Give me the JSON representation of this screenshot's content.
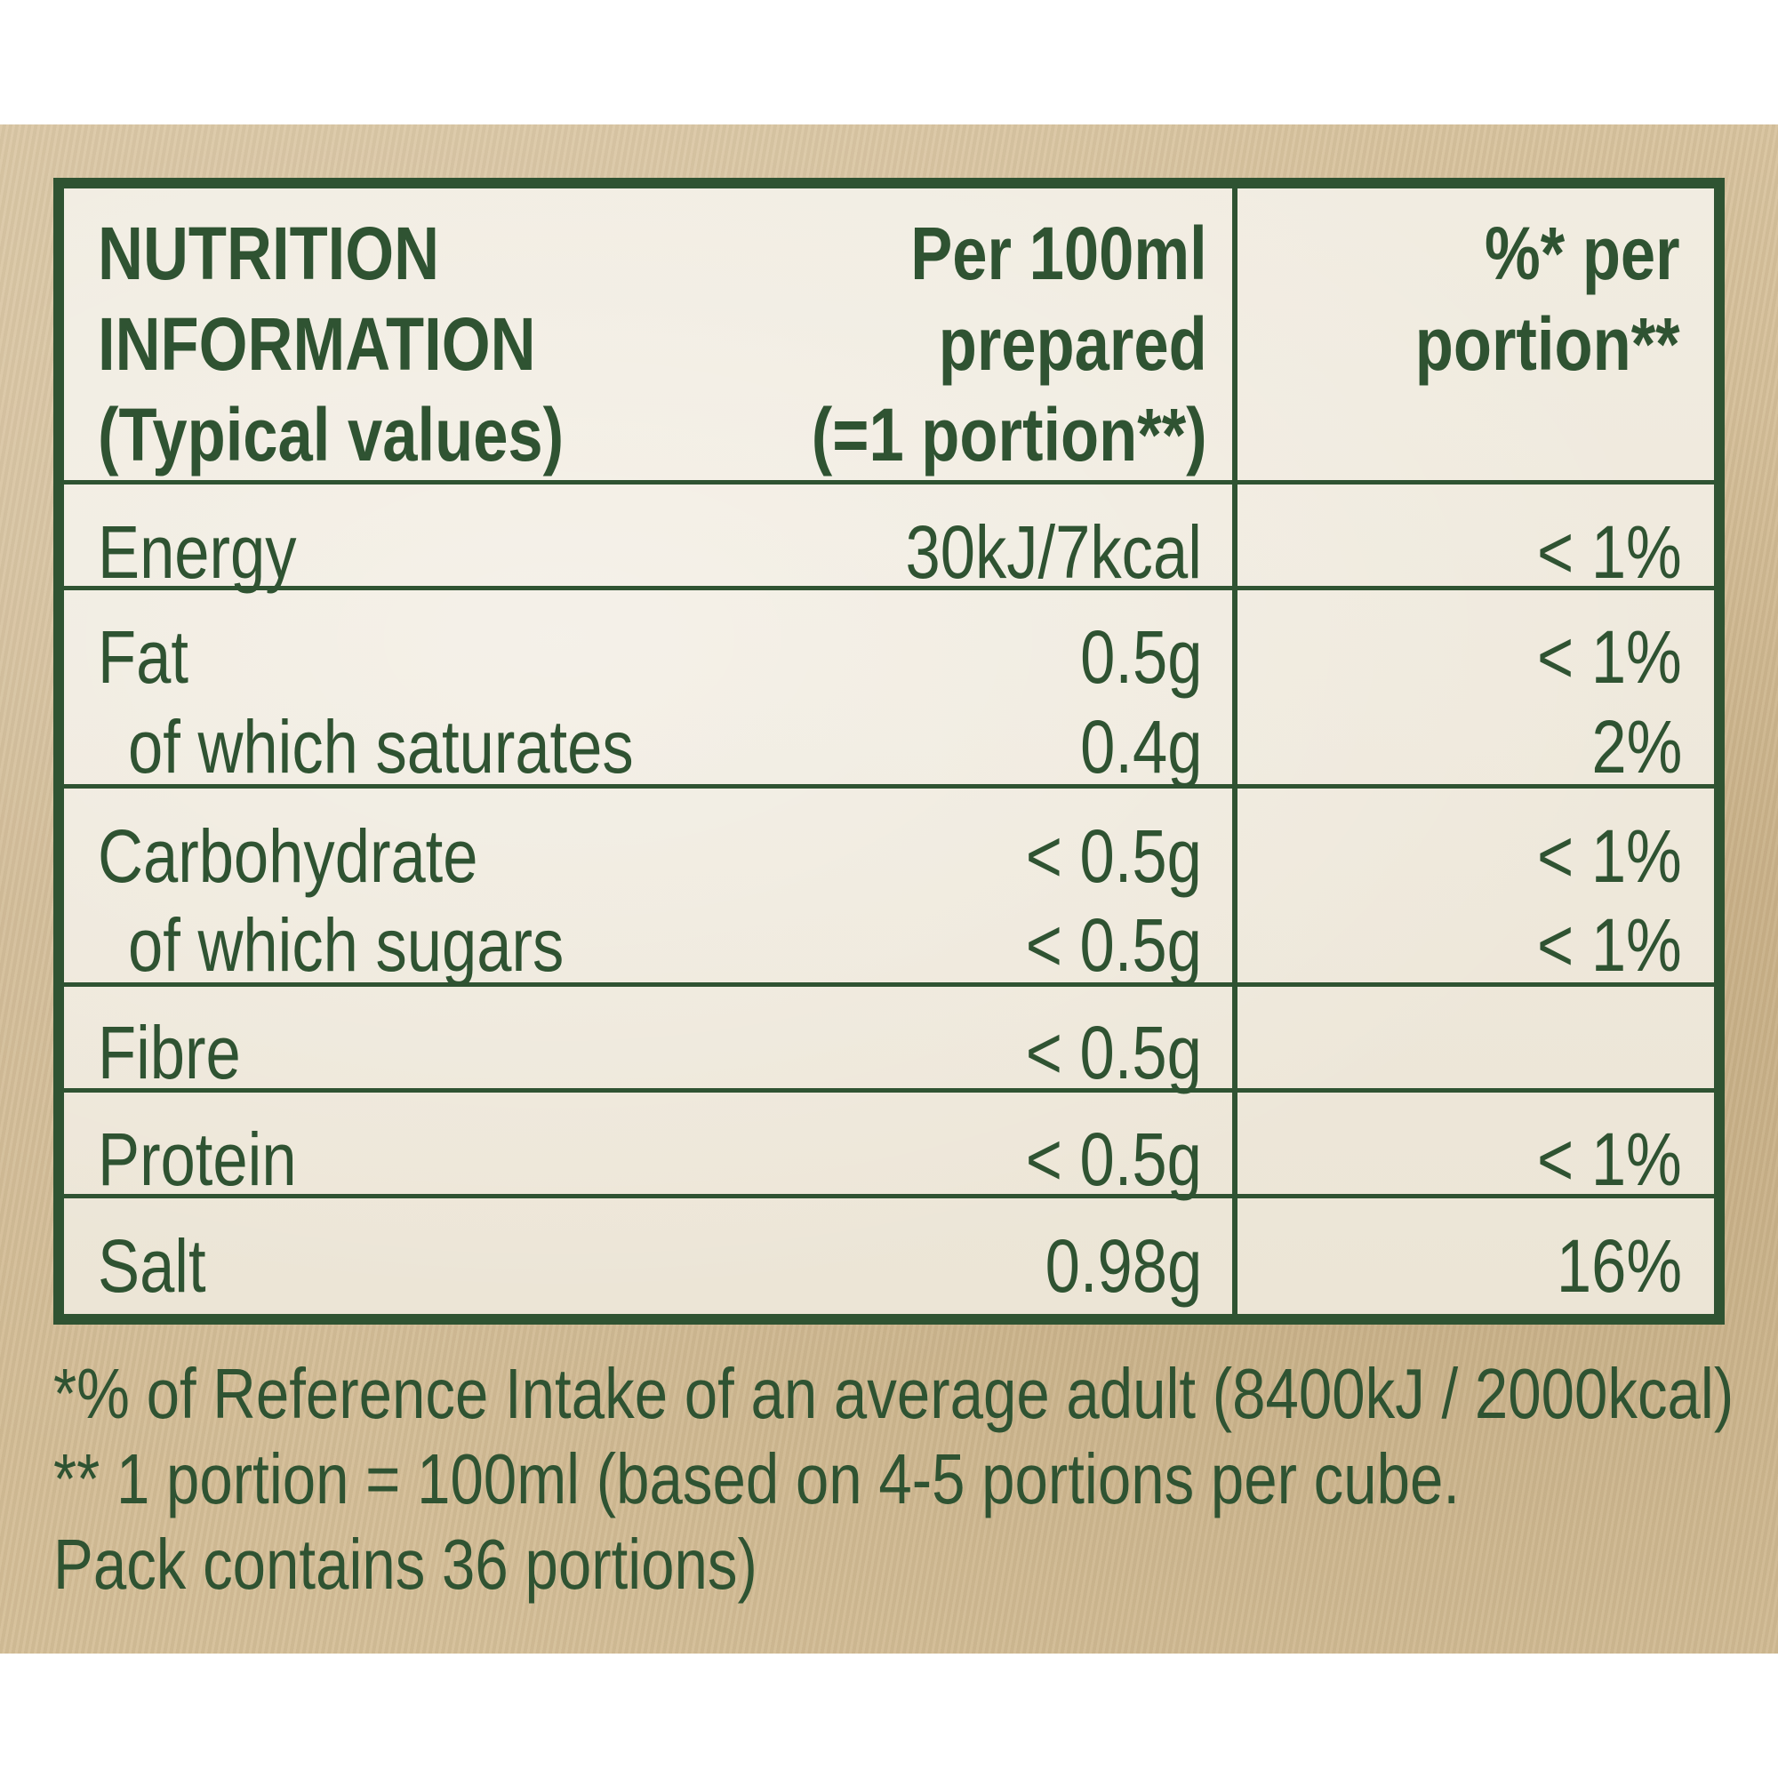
{
  "header": {
    "title_lines": [
      "NUTRITION",
      "INFORMATION",
      "(Typical values)"
    ],
    "per100_lines": [
      "Per 100ml",
      "prepared",
      "(=1 portion**)"
    ],
    "percent_lines": [
      "%* per",
      "portion**"
    ]
  },
  "rows": [
    {
      "label": "Energy",
      "value": "30kJ/7kcal",
      "percent": "< 1%"
    },
    {
      "label": "Fat",
      "value": "0.5g",
      "percent": "< 1%"
    },
    {
      "label": "of which saturates",
      "value": "0.4g",
      "percent": "2%"
    },
    {
      "label": "Carbohydrate",
      "value": "< 0.5g",
      "percent": "< 1%"
    },
    {
      "label": "of which sugars",
      "value": "< 0.5g",
      "percent": "< 1%"
    },
    {
      "label": "Fibre",
      "value": "< 0.5g",
      "percent": ""
    },
    {
      "label": "Protein",
      "value": "< 0.5g",
      "percent": "< 1%"
    },
    {
      "label": "Salt",
      "value": "0.98g",
      "percent": "16%"
    }
  ],
  "footnotes": [
    "*% of Reference Intake of an average adult (8400kJ / 2000kcal)",
    "** 1 portion = 100ml (based on 4-5 portions per cube.",
    "Pack contains 36 portions)"
  ],
  "colors": {
    "ink": "#2f5332",
    "panel": "#d5bf98",
    "table_bg": "#eee8db"
  }
}
